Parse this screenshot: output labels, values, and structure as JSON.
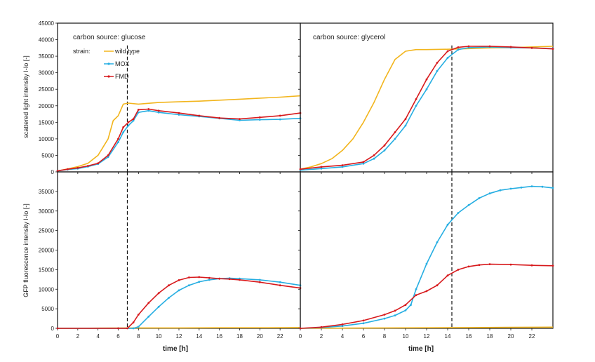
{
  "figure": {
    "x_axis_title": "time  [h]",
    "left_top_ylabel": "scattered light intensity  I-Io  [-]",
    "left_bottom_ylabel": "GFP fluorescence intensity  I-Io  [-]",
    "strain_label": "strain:"
  },
  "chart_data": [
    {
      "type": "line",
      "title": "carbon source: glucose",
      "xlabel": "time  [h]",
      "ylabel": "scattered light intensity  I-Io  [-]",
      "xlim": [
        0,
        24
      ],
      "ylim": [
        0,
        45000
      ],
      "x_ticks": [
        0,
        2,
        4,
        6,
        8,
        10,
        12,
        14,
        16,
        18,
        20,
        22
      ],
      "y_ticks": [
        0,
        5000,
        10000,
        15000,
        20000,
        25000,
        30000,
        35000,
        40000,
        45000
      ],
      "show_tick_labels_x": false,
      "vline_x": 6.9,
      "legend": "top-left",
      "series": [
        {
          "name": "wild type",
          "color": "#f2b51d",
          "x": [
            0,
            1,
            2,
            3,
            4,
            5,
            5.5,
            6,
            6.5,
            7,
            8,
            10,
            12,
            14,
            16,
            18,
            20,
            22,
            24
          ],
          "values": [
            300,
            900,
            1600,
            2600,
            5000,
            10000,
            15500,
            17000,
            20500,
            20800,
            20500,
            21000,
            21200,
            21400,
            21700,
            22000,
            22300,
            22600,
            23000
          ]
        },
        {
          "name": "MOX",
          "color": "#26aee2",
          "x": [
            0,
            1,
            2,
            3,
            4,
            5,
            6,
            6.5,
            7,
            7.5,
            8,
            9,
            10,
            12,
            14,
            16,
            18,
            20,
            22,
            24
          ],
          "values": [
            300,
            700,
            1000,
            1600,
            2400,
            4500,
            9000,
            12000,
            14000,
            15500,
            18000,
            18500,
            18000,
            17300,
            16800,
            16200,
            15600,
            15800,
            15900,
            16200
          ]
        },
        {
          "name": "FMD",
          "color": "#d7191c",
          "x": [
            0,
            1,
            2,
            3,
            4,
            5,
            6,
            6.5,
            7,
            7.5,
            8,
            9,
            10,
            12,
            14,
            16,
            18,
            20,
            22,
            24
          ],
          "values": [
            300,
            800,
            1200,
            1800,
            2600,
            5000,
            10000,
            13500,
            15000,
            16000,
            18800,
            19000,
            18500,
            17800,
            17000,
            16300,
            16000,
            16500,
            17000,
            17800
          ]
        }
      ]
    },
    {
      "type": "line",
      "title": "carbon source: glycerol",
      "xlim": [
        0,
        24
      ],
      "ylim": [
        0,
        45000
      ],
      "show_tick_labels_x": false,
      "show_tick_labels_y": false,
      "vline_x": 14.4,
      "series": [
        {
          "name": "wild type",
          "color": "#f2b51d",
          "x": [
            0,
            1,
            2,
            3,
            4,
            5,
            6,
            7,
            8,
            9,
            10,
            11,
            12,
            14,
            16,
            18,
            20,
            22,
            24
          ],
          "values": [
            800,
            1500,
            2500,
            4000,
            6500,
            10000,
            15000,
            21000,
            28000,
            34000,
            36500,
            37000,
            37000,
            37100,
            37300,
            37500,
            37600,
            37800,
            38000
          ]
        },
        {
          "name": "MOX",
          "color": "#26aee2",
          "x": [
            0,
            2,
            4,
            6,
            7,
            8,
            9,
            10,
            11,
            12,
            13,
            14,
            15,
            16,
            18,
            20,
            22,
            24
          ],
          "values": [
            500,
            1000,
            1500,
            2500,
            4000,
            6500,
            10000,
            14000,
            20000,
            25000,
            30500,
            34500,
            37000,
            37600,
            37800,
            37600,
            37500,
            37300
          ]
        },
        {
          "name": "FMD",
          "color": "#d7191c",
          "x": [
            0,
            2,
            4,
            6,
            7,
            8,
            9,
            10,
            11,
            12,
            13,
            14,
            15,
            16,
            18,
            20,
            22,
            24
          ],
          "values": [
            800,
            1500,
            2000,
            3000,
            5000,
            8000,
            12000,
            16000,
            22000,
            28000,
            33000,
            36500,
            37700,
            38000,
            38000,
            37800,
            37500,
            37200
          ]
        }
      ]
    },
    {
      "type": "line",
      "xlabel": "time  [h]",
      "ylabel": "GFP fluorescence intensity  I-Io  [-]",
      "xlim": [
        0,
        24
      ],
      "ylim": [
        0,
        40000
      ],
      "x_ticks": [
        0,
        2,
        4,
        6,
        8,
        10,
        12,
        14,
        16,
        18,
        20,
        22
      ],
      "y_ticks": [
        0,
        5000,
        10000,
        15000,
        20000,
        25000,
        30000,
        35000
      ],
      "vline_x": 6.9,
      "series": [
        {
          "name": "wild type",
          "color": "#f2b51d",
          "x": [
            0,
            4,
            8,
            12,
            16,
            20,
            24
          ],
          "values": [
            0,
            50,
            100,
            100,
            150,
            150,
            200
          ]
        },
        {
          "name": "MOX",
          "color": "#26aee2",
          "x": [
            0,
            6,
            7.5,
            8,
            9,
            10,
            11,
            12,
            13,
            14,
            15,
            16,
            17,
            18,
            20,
            22,
            24
          ],
          "values": [
            0,
            0,
            0,
            400,
            3000,
            5500,
            7800,
            9700,
            11000,
            11900,
            12400,
            12700,
            12800,
            12700,
            12400,
            11800,
            11000
          ]
        },
        {
          "name": "FMD",
          "color": "#d7191c",
          "x": [
            0,
            6,
            6.9,
            7.5,
            8,
            9,
            10,
            11,
            12,
            13,
            14,
            15,
            16,
            17,
            18,
            20,
            22,
            24
          ],
          "values": [
            0,
            0,
            0,
            1500,
            3500,
            6500,
            9000,
            11000,
            12300,
            13000,
            13100,
            12900,
            12700,
            12600,
            12400,
            11800,
            11000,
            10300
          ]
        }
      ]
    },
    {
      "type": "line",
      "xlabel": "time  [h]",
      "xlim": [
        0,
        24
      ],
      "ylim": [
        0,
        40000
      ],
      "x_ticks": [
        0,
        2,
        4,
        6,
        8,
        10,
        12,
        14,
        16,
        18,
        20,
        22
      ],
      "show_tick_labels_y": false,
      "vline_x": 14.4,
      "series": [
        {
          "name": "wild type",
          "color": "#f2b51d",
          "x": [
            0,
            4,
            8,
            12,
            16,
            20,
            24
          ],
          "values": [
            0,
            50,
            100,
            150,
            200,
            250,
            300
          ]
        },
        {
          "name": "MOX",
          "color": "#26aee2",
          "x": [
            0,
            2,
            4,
            6,
            8,
            9,
            10,
            10.5,
            11,
            12,
            13,
            14,
            15,
            16,
            17,
            18,
            19,
            20,
            21,
            22,
            23,
            24
          ],
          "values": [
            0,
            200,
            600,
            1300,
            2500,
            3300,
            4600,
            6000,
            10000,
            16500,
            22000,
            26500,
            29500,
            31500,
            33300,
            34500,
            35300,
            35700,
            36000,
            36300,
            36200,
            35900
          ]
        },
        {
          "name": "FMD",
          "color": "#d7191c",
          "x": [
            0,
            2,
            4,
            6,
            8,
            9,
            10,
            11,
            12,
            13,
            14,
            15,
            16,
            17,
            18,
            20,
            22,
            24
          ],
          "values": [
            0,
            300,
            1000,
            2000,
            3500,
            4500,
            6000,
            8500,
            9500,
            11000,
            13500,
            15000,
            15800,
            16200,
            16400,
            16300,
            16100,
            16000
          ]
        }
      ]
    }
  ]
}
